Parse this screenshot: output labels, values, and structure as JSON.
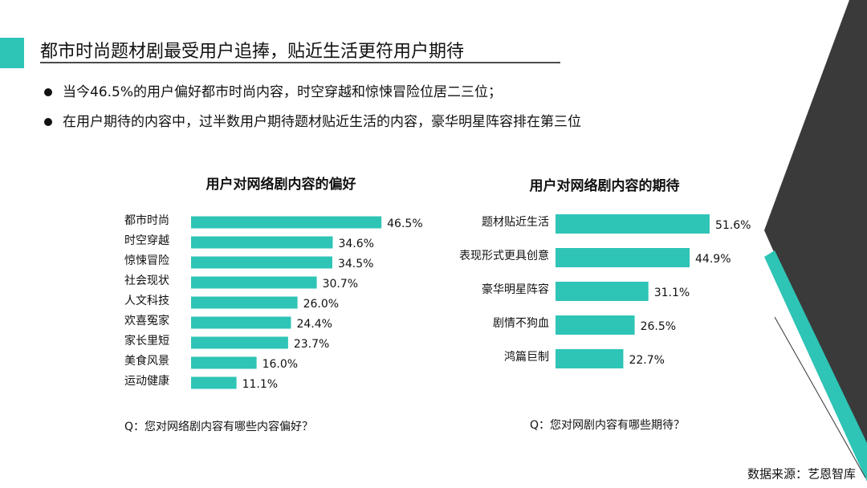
{
  "header": {
    "title": "都市时尚题材剧最受用户追捧，贴近生活更符用户期待"
  },
  "bullets": [
    "当今46.5%的用户偏好都市时尚内容，时空穿越和惊悚冒险位居二三位；",
    "在用户期待的内容中，过半数用户期待题材贴近生活的内容，豪华明星阵容排在第三位"
  ],
  "source": "数据来源：艺恩智库",
  "chart_data": [
    {
      "type": "bar",
      "orientation": "horizontal",
      "title": "用户对网络剧内容的偏好",
      "color": "#2ec4b6",
      "categories": [
        "都市时尚",
        "时空穿越",
        "惊悚冒险",
        "社会现状",
        "人文科技",
        "欢喜冤家",
        "家长里短",
        "美食风景",
        "运动健康"
      ],
      "values": [
        46.5,
        34.6,
        34.5,
        30.7,
        26.0,
        24.4,
        23.7,
        16.0,
        11.1
      ],
      "value_labels": [
        "46.5%",
        "34.6%",
        "34.5%",
        "30.7%",
        "26.0%",
        "24.4%",
        "23.7%",
        "16.0%",
        "11.1%"
      ],
      "note": "Q：您对网络剧内容有哪些内容偏好？"
    },
    {
      "type": "bar",
      "orientation": "horizontal",
      "title": "用户对网络剧内容的期待",
      "color": "#2ec4b6",
      "categories": [
        "题材贴近生活",
        "表现形式更具创意",
        "豪华明星阵容",
        "剧情不狗血",
        "鸿篇巨制"
      ],
      "values": [
        51.6,
        44.9,
        31.1,
        26.5,
        22.7
      ],
      "value_labels": [
        "51.6%",
        "44.9%",
        "31.1%",
        "26.5%",
        "22.7%"
      ],
      "note": "Q：您对网剧内容有哪些期待？"
    }
  ]
}
